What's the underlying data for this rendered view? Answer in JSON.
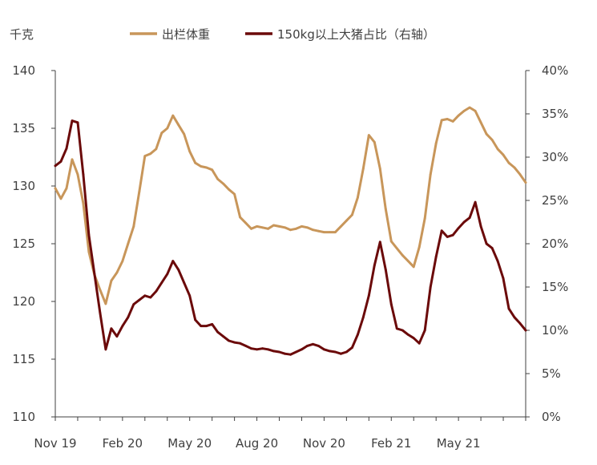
{
  "chart_data": {
    "type": "line",
    "left_unit_label": "千克",
    "x_tick_labels": [
      "Nov 19",
      "Feb 20",
      "May 20",
      "Aug 20",
      "Nov 20",
      "Feb 21",
      "May 21"
    ],
    "x_range": [
      0,
      21
    ],
    "ylim_left": [
      110,
      140
    ],
    "yticks_left": [
      "110",
      "115",
      "120",
      "125",
      "130",
      "135",
      "140"
    ],
    "ylim_right": [
      0,
      40
    ],
    "yticks_right": [
      "0%",
      "5%",
      "10%",
      "15%",
      "20%",
      "25%",
      "30%",
      "35%",
      "40%"
    ],
    "legend_position": "top",
    "grid": false,
    "series": [
      {
        "name": "出栏体重",
        "axis": "left",
        "color": "#C8965A",
        "x": [
          0,
          0.25,
          0.5,
          0.75,
          1.0,
          1.25,
          1.5,
          1.75,
          2.0,
          2.25,
          2.5,
          2.75,
          3.0,
          3.25,
          3.5,
          3.75,
          4.0,
          4.25,
          4.5,
          4.75,
          5.0,
          5.25,
          5.5,
          5.75,
          6.0,
          6.25,
          6.5,
          6.75,
          7.0,
          7.25,
          7.5,
          7.75,
          8.0,
          8.25,
          8.5,
          8.75,
          9.0,
          9.25,
          9.5,
          9.75,
          10.0,
          10.25,
          10.5,
          10.75,
          11.0,
          11.25,
          11.5,
          11.75,
          12.0,
          12.25,
          12.5,
          12.75,
          13.0,
          13.25,
          13.5,
          13.75,
          14.0,
          14.25,
          14.5,
          14.75,
          15.0,
          15.25,
          15.5,
          15.75,
          16.0,
          16.25,
          16.5,
          16.75,
          17.0,
          17.25,
          17.5,
          17.75,
          18.0,
          18.25,
          18.5,
          18.75,
          19.0,
          19.25,
          19.5,
          19.75,
          20.0,
          20.25,
          20.5,
          20.75,
          21.0
        ],
        "values": [
          129.8,
          128.9,
          129.8,
          132.3,
          131.0,
          128.5,
          124.3,
          122.3,
          121.0,
          119.8,
          121.8,
          122.5,
          123.5,
          125.0,
          126.5,
          129.5,
          132.6,
          132.8,
          133.2,
          134.6,
          135.0,
          136.1,
          135.3,
          134.5,
          133.0,
          132.0,
          131.7,
          131.6,
          131.4,
          130.6,
          130.2,
          129.7,
          129.3,
          127.3,
          126.8,
          126.3,
          126.5,
          126.4,
          126.3,
          126.6,
          126.5,
          126.4,
          126.2,
          126.3,
          126.5,
          126.4,
          126.2,
          126.1,
          126.0,
          126.0,
          126.0,
          126.5,
          127.0,
          127.5,
          129.0,
          131.5,
          134.4,
          133.8,
          131.5,
          128.0,
          125.2,
          124.6,
          124.0,
          123.5,
          123.0,
          124.7,
          127.2,
          131.0,
          133.7,
          135.7,
          135.8,
          135.6,
          136.1,
          136.5,
          136.8,
          136.5,
          135.5,
          134.5,
          134.0,
          133.2,
          132.7,
          132.0,
          131.6,
          131.0,
          130.3
        ]
      },
      {
        "name": "150kg以上大猪占比（右轴）",
        "axis": "right",
        "color": "#6B0A0A",
        "x": [
          0,
          0.25,
          0.5,
          0.75,
          1.0,
          1.25,
          1.5,
          1.75,
          2.0,
          2.25,
          2.5,
          2.75,
          3.0,
          3.25,
          3.5,
          3.75,
          4.0,
          4.25,
          4.5,
          4.75,
          5.0,
          5.25,
          5.5,
          5.75,
          6.0,
          6.25,
          6.5,
          6.75,
          7.0,
          7.25,
          7.5,
          7.75,
          8.0,
          8.25,
          8.5,
          8.75,
          9.0,
          9.25,
          9.5,
          9.75,
          10.0,
          10.25,
          10.5,
          10.75,
          11.0,
          11.25,
          11.5,
          11.75,
          12.0,
          12.25,
          12.5,
          12.75,
          13.0,
          13.25,
          13.5,
          13.75,
          14.0,
          14.25,
          14.5,
          14.75,
          15.0,
          15.25,
          15.5,
          15.75,
          16.0,
          16.25,
          16.5,
          16.75,
          17.0,
          17.25,
          17.5,
          17.75,
          18.0,
          18.25,
          18.5,
          18.75,
          19.0,
          19.25,
          19.5,
          19.75,
          20.0,
          20.25,
          20.5,
          20.75,
          21.0
        ],
        "values": [
          29.0,
          29.5,
          31.0,
          34.2,
          34.0,
          28.0,
          21.0,
          16.5,
          12.0,
          7.8,
          10.2,
          9.3,
          10.5,
          11.5,
          13.0,
          13.5,
          14.0,
          13.8,
          14.5,
          15.5,
          16.5,
          18.0,
          17.0,
          15.5,
          14.0,
          11.2,
          10.5,
          10.5,
          10.7,
          9.8,
          9.3,
          8.8,
          8.6,
          8.5,
          8.2,
          7.9,
          7.8,
          7.9,
          7.8,
          7.6,
          7.5,
          7.3,
          7.2,
          7.5,
          7.8,
          8.2,
          8.4,
          8.2,
          7.8,
          7.6,
          7.5,
          7.3,
          7.5,
          8.0,
          9.5,
          11.5,
          14.0,
          17.5,
          20.2,
          17.0,
          13.0,
          10.2,
          10.0,
          9.5,
          9.1,
          8.5,
          10.0,
          15.0,
          18.5,
          21.5,
          20.8,
          21.0,
          21.8,
          22.5,
          23.0,
          24.8,
          22.0,
          20.0,
          19.5,
          18.0,
          16.0,
          12.5,
          11.5,
          10.8,
          10.0
        ]
      }
    ]
  }
}
